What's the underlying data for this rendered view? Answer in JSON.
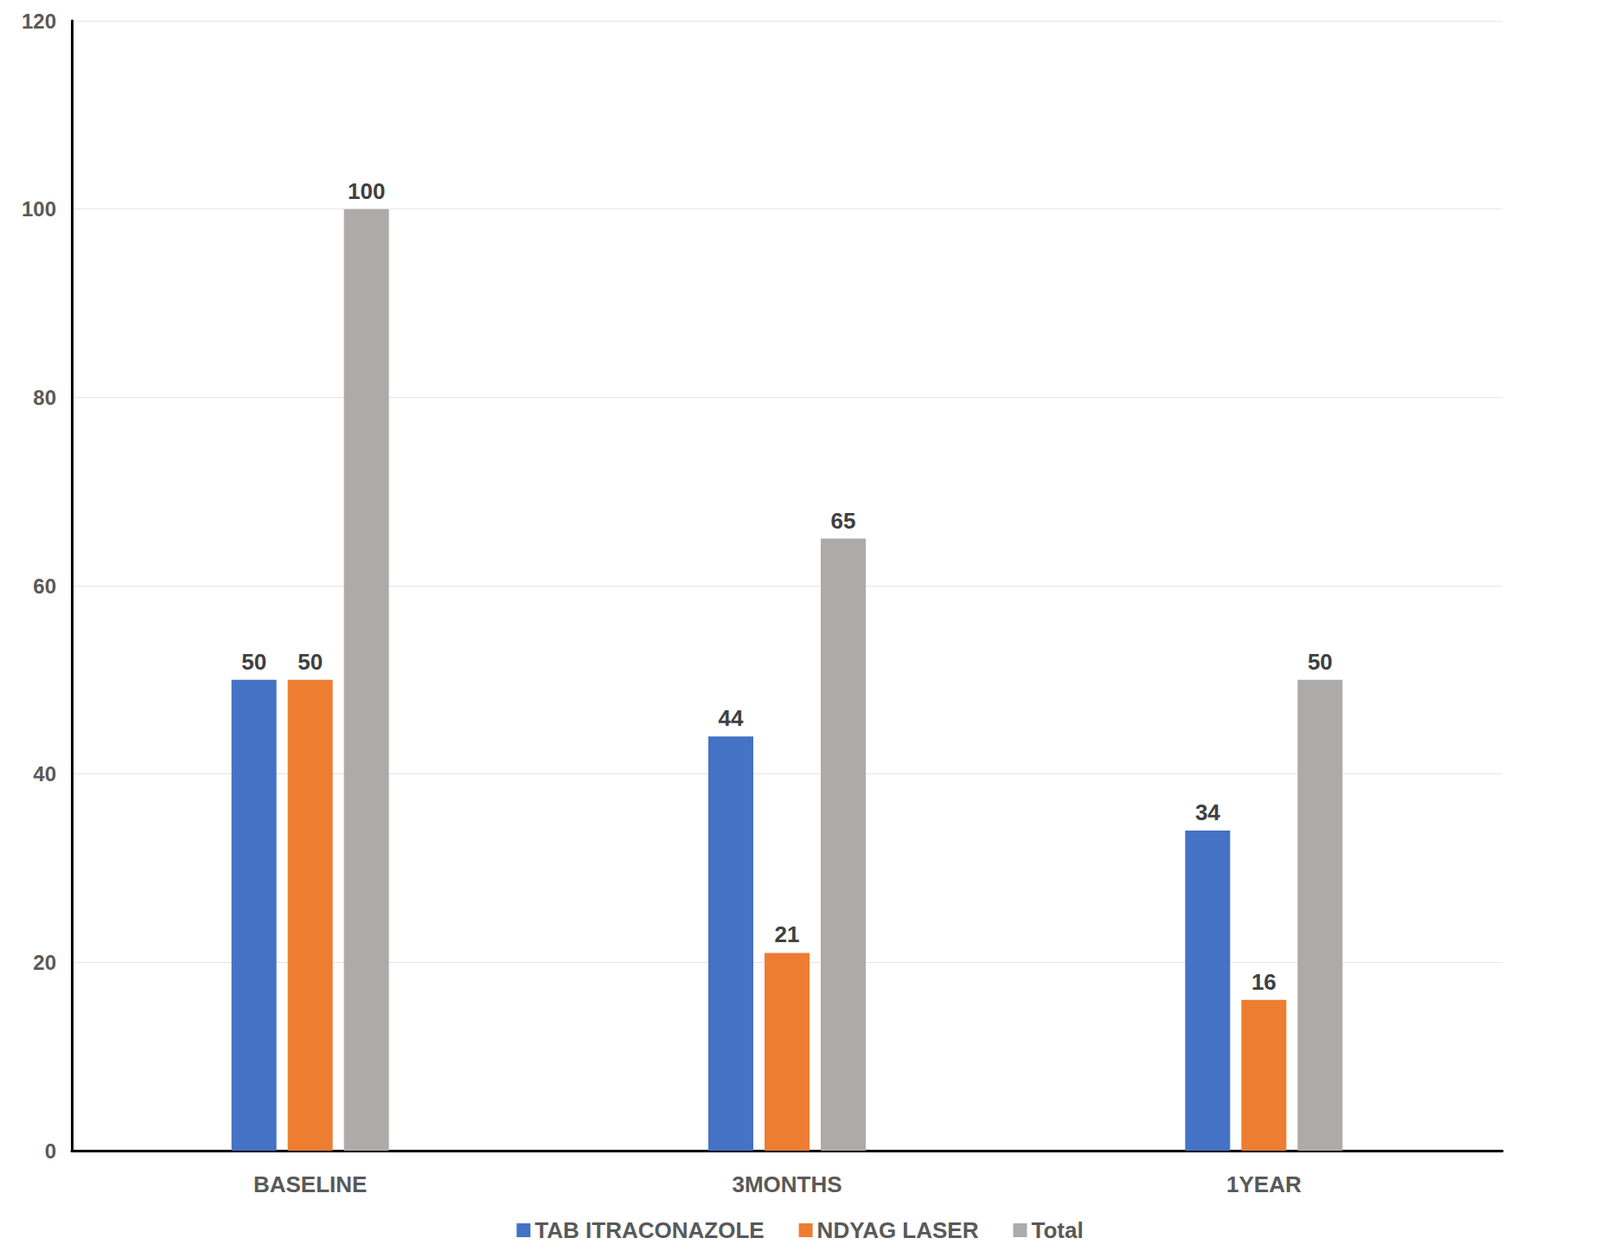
{
  "chart_data": {
    "type": "bar",
    "categories": [
      "BASELINE",
      "3MONTHS",
      "1YEAR"
    ],
    "series": [
      {
        "name": "TAB ITRACONAZOLE",
        "color": "#4472c4",
        "values": [
          50,
          44,
          34
        ]
      },
      {
        "name": "NDYAG LASER",
        "color": "#ed7d31",
        "values": [
          50,
          21,
          16
        ]
      },
      {
        "name": "Total",
        "color": "#adaaaa",
        "values": [
          100,
          65,
          50
        ]
      }
    ],
    "ylim": [
      0,
      120
    ],
    "yticks": [
      0,
      20,
      40,
      60,
      80,
      100,
      120
    ],
    "grid": true,
    "data_labels": true,
    "legend": "bottom"
  }
}
